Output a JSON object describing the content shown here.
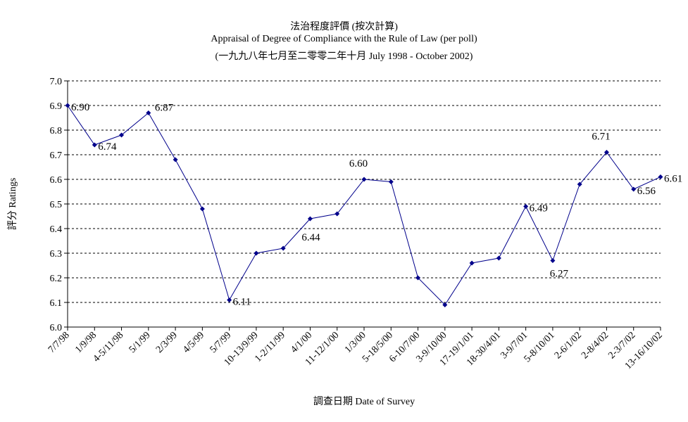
{
  "chart_data": {
    "type": "line",
    "title_zh": "法治程度評價 (按次計算)",
    "title_en": "Appraisal of Degree of Compliance with the Rule of Law (per poll)",
    "subtitle": "(一九九八年七月至二零零二年十月 July 1998 - October 2002)",
    "xlabel": "調查日期 Date of Survey",
    "ylabel": "評分 Ratings",
    "ylim": [
      6.0,
      7.0
    ],
    "yticks": [
      "6.0",
      "6.1",
      "6.2",
      "6.3",
      "6.4",
      "6.5",
      "6.6",
      "6.7",
      "6.8",
      "6.9",
      "7.0"
    ],
    "grid": true,
    "line_color": "#00008b",
    "categories": [
      "7/7/98",
      "1/9/98",
      "4-5/11/98",
      "5/1/99",
      "2/3/99",
      "4/5/99",
      "5/7/99",
      "10-13/9/99",
      "1-2/11/99",
      "4/1/00",
      "11-12/1/00",
      "1/3/00",
      "5-18/5/00",
      "6-10/7/00",
      "3-9/10/00",
      "17-19/1/01",
      "18-30/4/01",
      "3-9/7/01",
      "5-8/10/01",
      "2-6/1/02",
      "2-8/4/02",
      "2-3/7/02",
      "13-16/10/02"
    ],
    "values": [
      6.9,
      6.74,
      6.78,
      6.87,
      6.68,
      6.48,
      6.11,
      6.3,
      6.32,
      6.44,
      6.46,
      6.6,
      6.59,
      6.2,
      6.09,
      6.26,
      6.28,
      6.49,
      6.27,
      6.58,
      6.71,
      6.56,
      6.61
    ],
    "data_labels": [
      {
        "index": 0,
        "text": "6.90"
      },
      {
        "index": 1,
        "text": "6.74"
      },
      {
        "index": 3,
        "text": "6.87"
      },
      {
        "index": 6,
        "text": "6.11"
      },
      {
        "index": 9,
        "text": "6.44"
      },
      {
        "index": 11,
        "text": "6.60"
      },
      {
        "index": 17,
        "text": "6.49"
      },
      {
        "index": 18,
        "text": "6.27"
      },
      {
        "index": 20,
        "text": "6.71"
      },
      {
        "index": 21,
        "text": "6.56"
      },
      {
        "index": 22,
        "text": "6.61"
      }
    ]
  }
}
